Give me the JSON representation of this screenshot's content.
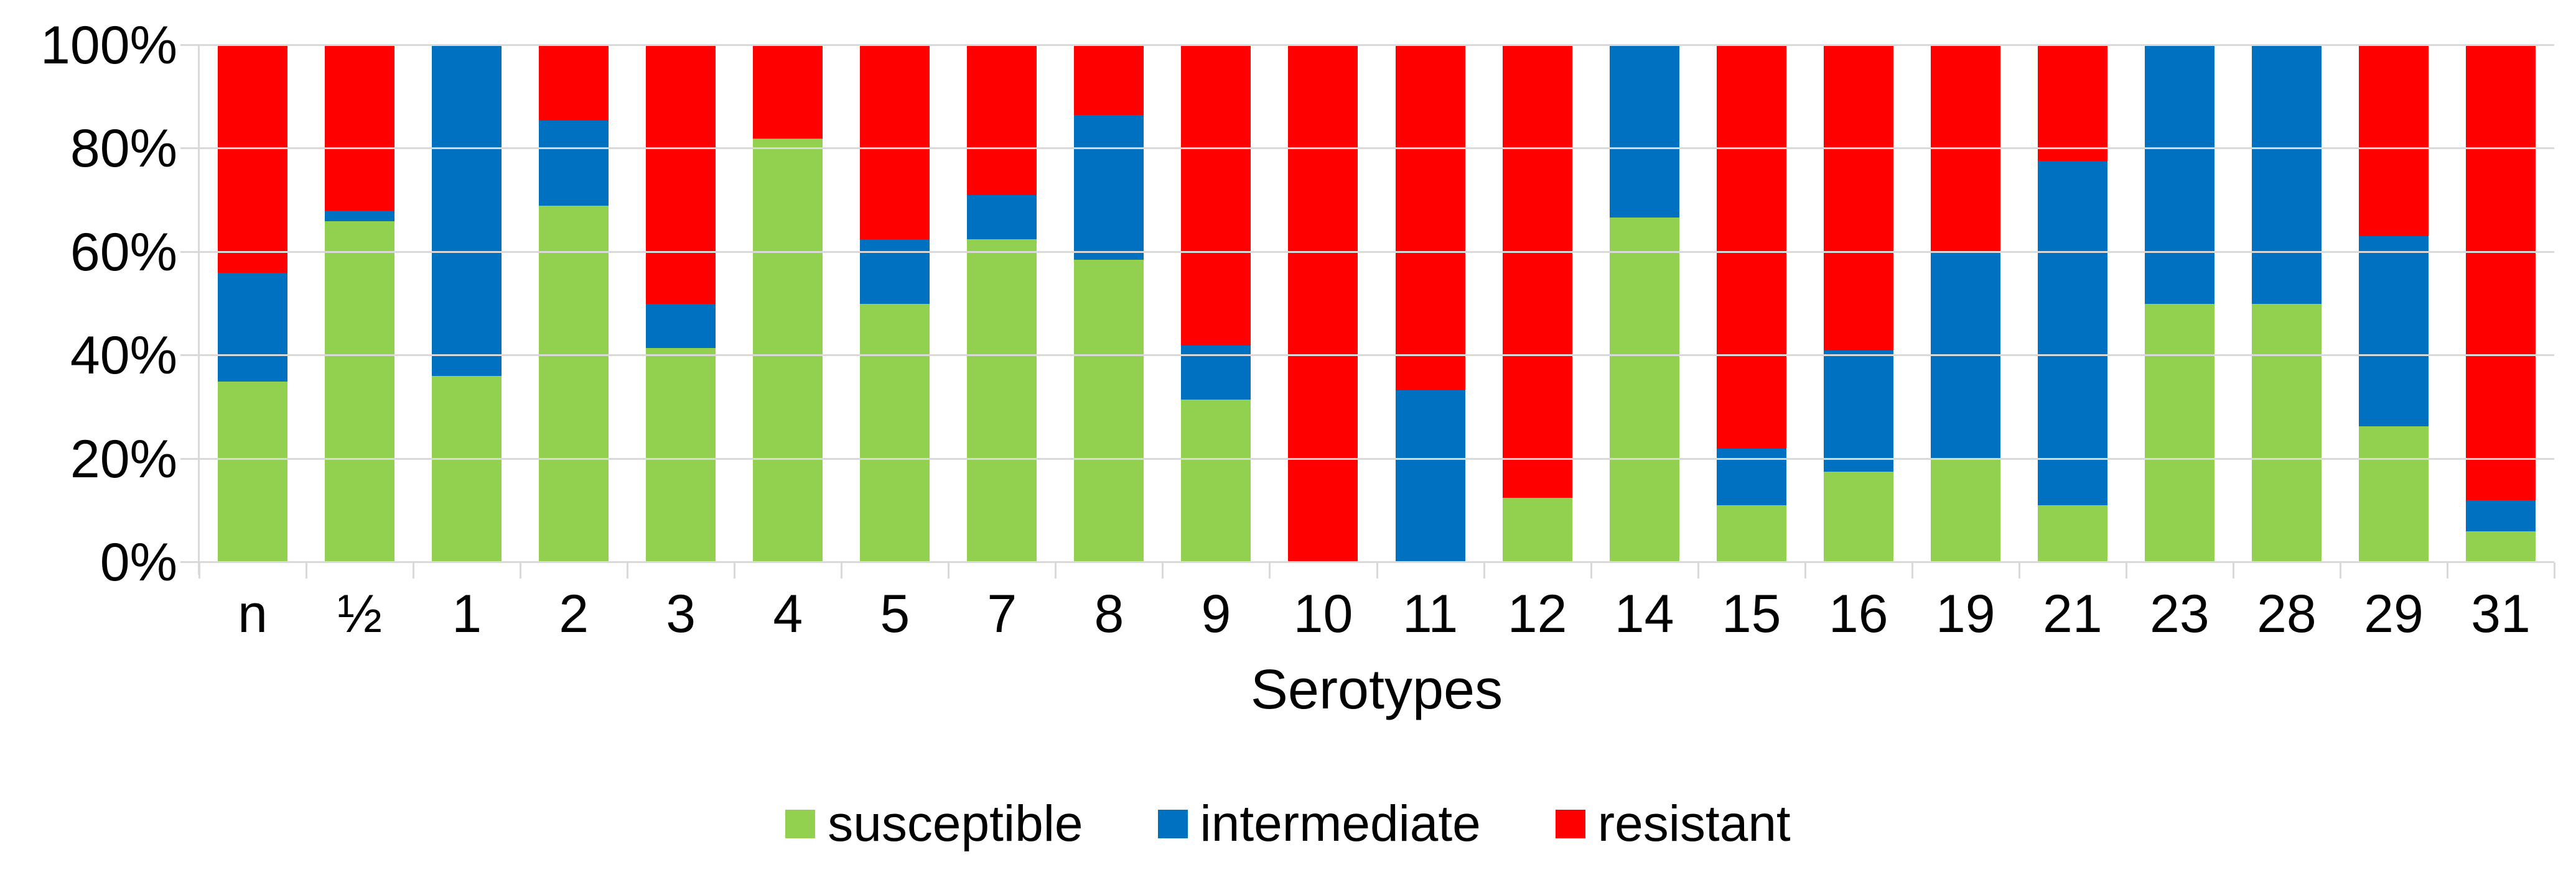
{
  "chart_data": {
    "type": "bar",
    "stacked": true,
    "orientation": "vertical",
    "title": "",
    "xlabel": "Serotypes",
    "ylabel": "",
    "ylim": [
      0,
      100
    ],
    "y_tick_labels": [
      "0%",
      "20%",
      "40%",
      "60%",
      "80%",
      "100%"
    ],
    "grid": true,
    "legend_position": "bottom-center",
    "categories": [
      "n",
      "½",
      "1",
      "2",
      "3",
      "4",
      "5",
      "7",
      "8",
      "9",
      "10",
      "11",
      "12",
      "14",
      "15",
      "16",
      "19",
      "21",
      "23",
      "28",
      "29",
      "31"
    ],
    "series": [
      {
        "name": "susceptible",
        "color": "#92D050",
        "values": [
          35,
          66,
          36,
          69,
          41.5,
          82,
          50,
          62.5,
          58.5,
          31.5,
          0,
          0,
          12.5,
          66.7,
          11,
          17.5,
          20,
          11,
          50,
          50,
          26.3,
          6
        ]
      },
      {
        "name": "intermediate",
        "color": "#0070C0",
        "values": [
          21,
          2,
          64,
          16.5,
          8.5,
          0,
          12.5,
          8.5,
          28,
          10.5,
          0,
          33.3,
          0,
          33.3,
          11,
          23.5,
          40,
          66.7,
          50,
          50,
          36.8,
          6
        ]
      },
      {
        "name": "resistant",
        "color": "#FF0000",
        "values": [
          44,
          32,
          0,
          14.5,
          50,
          18,
          37.5,
          29,
          13.5,
          58,
          100,
          66.7,
          87.5,
          0,
          78,
          59,
          40,
          22.3,
          0,
          0,
          36.9,
          88
        ]
      }
    ]
  },
  "colors": {
    "gridline": "#D9D9D9",
    "text": "#000000",
    "background": "#FFFFFF"
  }
}
